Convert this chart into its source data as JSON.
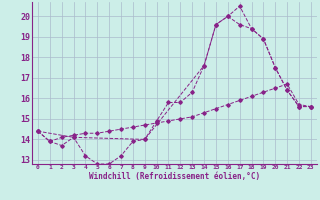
{
  "bg_color": "#cceee8",
  "grid_color": "#aabbcc",
  "line_color": "#882288",
  "xlabel": "Windchill (Refroidissement éolien,°C)",
  "xlim": [
    -0.5,
    23.5
  ],
  "ylim": [
    12.8,
    20.7
  ],
  "yticks": [
    13,
    14,
    15,
    16,
    17,
    18,
    19,
    20
  ],
  "xticks": [
    0,
    1,
    2,
    3,
    4,
    5,
    6,
    7,
    8,
    9,
    10,
    11,
    12,
    13,
    14,
    15,
    16,
    17,
    18,
    19,
    20,
    21,
    22,
    23
  ],
  "series": [
    {
      "x": [
        0,
        1,
        2,
        3,
        4,
        5,
        6,
        7,
        8,
        9,
        10,
        11,
        12,
        13,
        14,
        15,
        16,
        17,
        18,
        19,
        20,
        21,
        22,
        23
      ],
      "y": [
        14.4,
        13.9,
        13.7,
        14.1,
        13.2,
        12.8,
        12.8,
        13.2,
        13.9,
        14.0,
        14.9,
        15.8,
        15.8,
        16.3,
        17.6,
        19.6,
        20.0,
        19.6,
        19.4,
        18.9,
        17.5,
        16.4,
        15.6,
        15.6
      ]
    },
    {
      "x": [
        0,
        1,
        2,
        3,
        4,
        5,
        6,
        7,
        8,
        9,
        10,
        11,
        12,
        13,
        14,
        15,
        16,
        17,
        18,
        19,
        20,
        21,
        22,
        23
      ],
      "y": [
        14.4,
        13.9,
        14.1,
        14.2,
        14.3,
        14.3,
        14.4,
        14.5,
        14.6,
        14.7,
        14.8,
        14.9,
        15.0,
        15.1,
        15.3,
        15.5,
        15.7,
        15.9,
        16.1,
        16.3,
        16.5,
        16.7,
        15.7,
        15.6
      ]
    },
    {
      "x": [
        0,
        3,
        9,
        14,
        15,
        16,
        17,
        18,
        19,
        20,
        21,
        22,
        23
      ],
      "y": [
        14.4,
        14.1,
        14.0,
        17.6,
        19.6,
        20.0,
        20.5,
        19.4,
        18.9,
        17.5,
        16.4,
        15.6,
        15.6
      ]
    }
  ]
}
